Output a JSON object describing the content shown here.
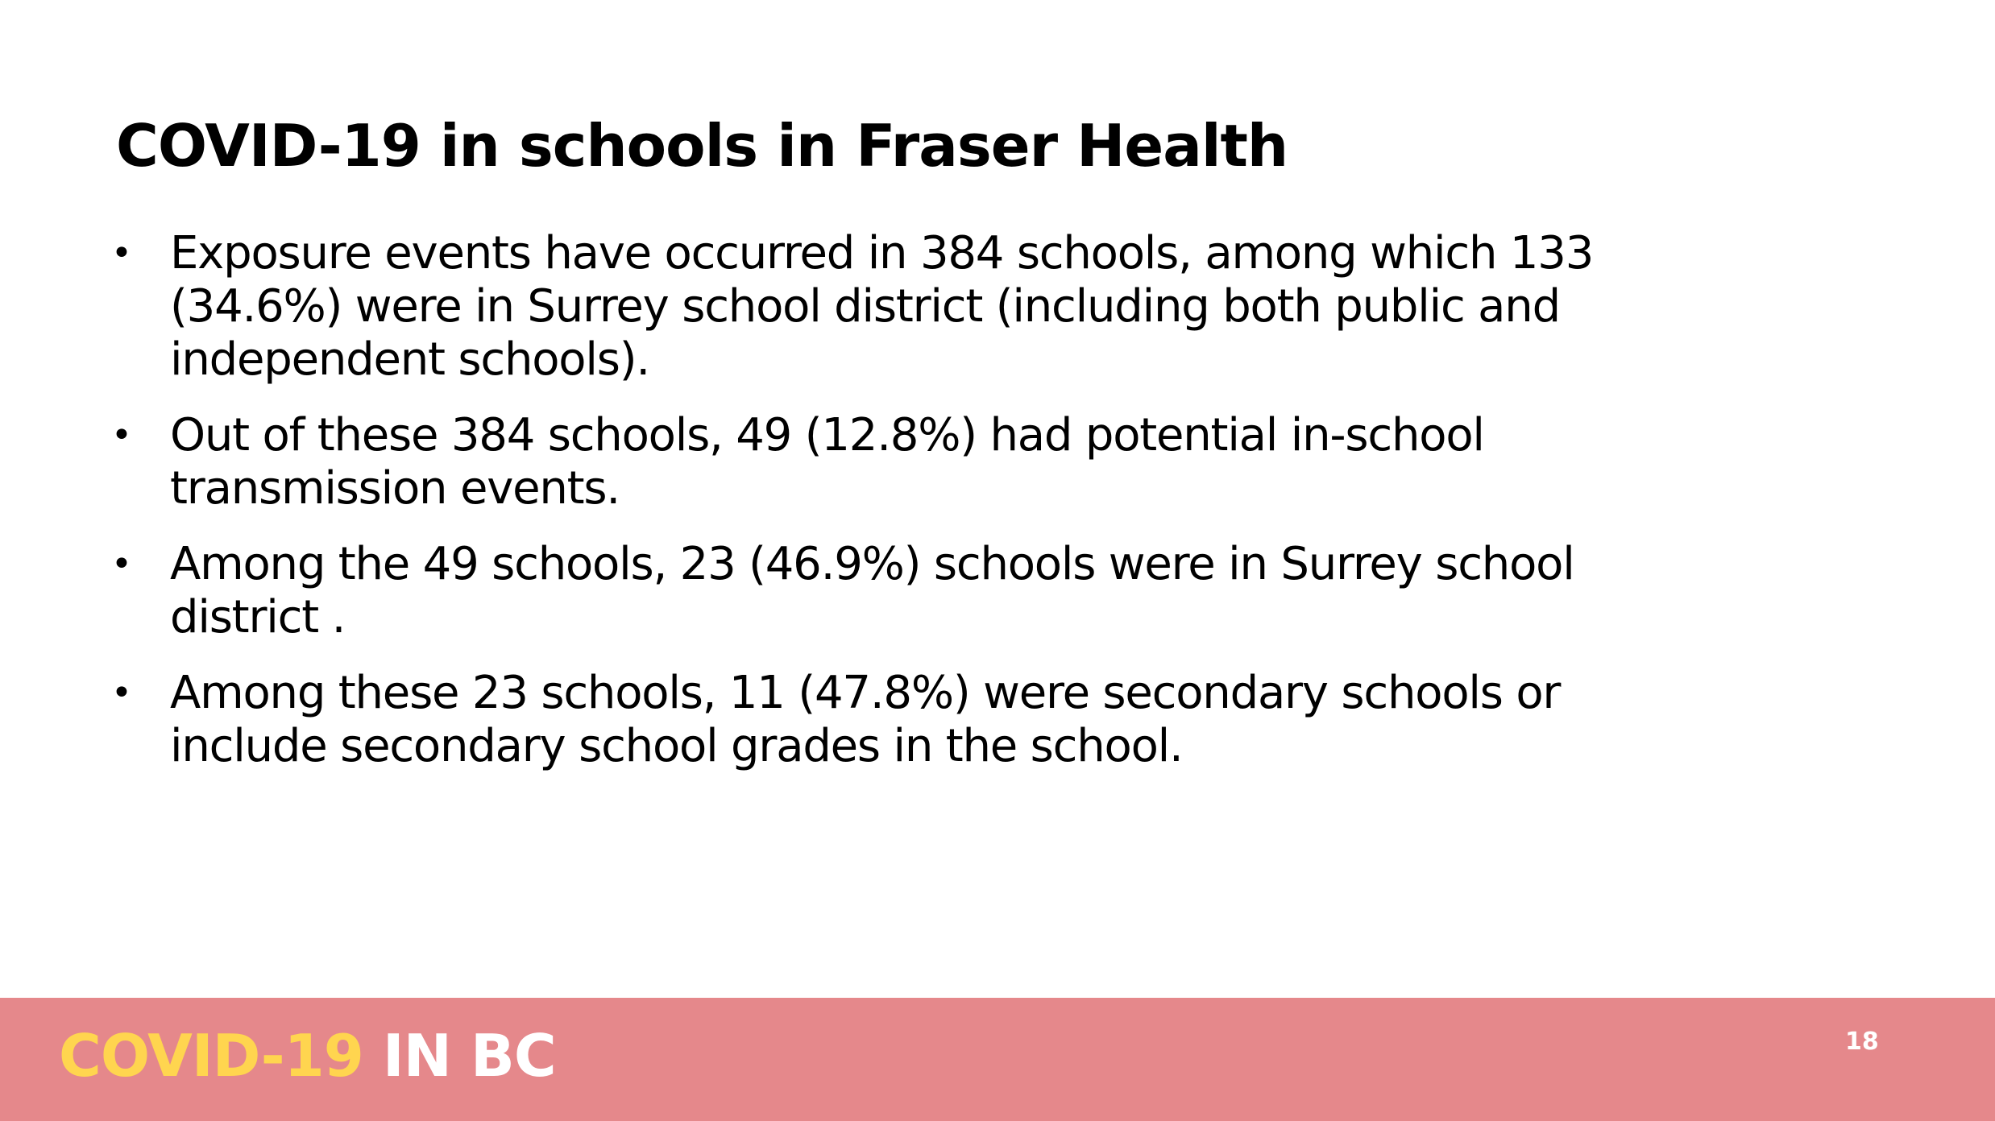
{
  "slide": {
    "title": "COVID-19 in schools in Fraser Health",
    "bullet_glyph": "•",
    "bullets": [
      "Exposure events have occurred in 384 schools, among which 133 (34.6%) were in Surrey school district (including both public and independent schools).",
      "Out of these 384 schools, 49 (12.8%) had potential in-school transmission events.",
      "Among the 49 schools, 23 (46.9%) schools were in Surrey school district .",
      "Among these 23 schools, 11 (47.8%) were secondary schools or include secondary school grades in the school."
    ]
  },
  "footer": {
    "logo_part1": "COVID-19",
    "logo_part2": "IN BC",
    "page_number": "18",
    "bar_color": "#e5888b",
    "logo_part1_color": "#ffd54f",
    "logo_part2_color": "#ffffff"
  }
}
